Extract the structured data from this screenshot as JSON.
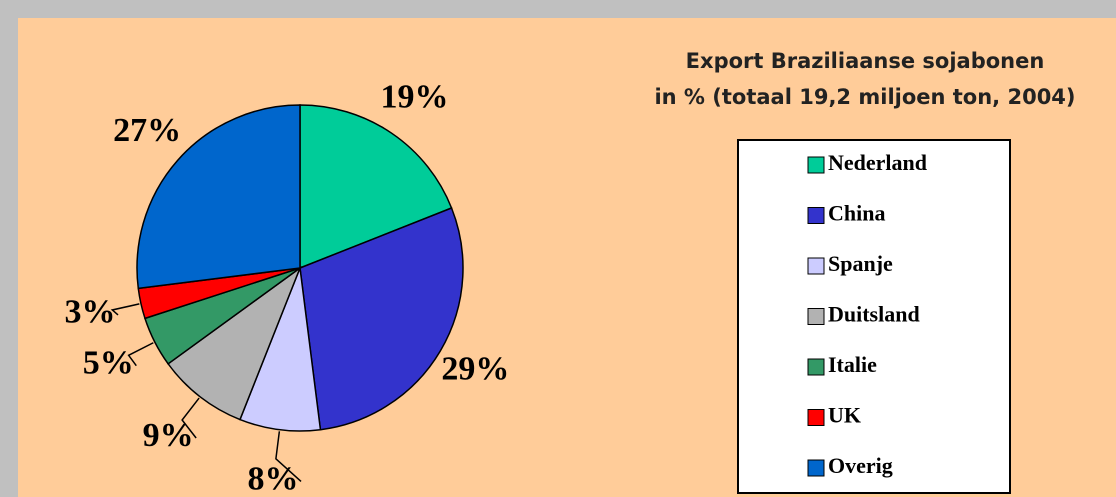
{
  "chart_data": {
    "type": "pie",
    "title": [
      "Export Braziliaanse sojabonen",
      "in % (totaal 19,2 miljoen ton, 2004)"
    ],
    "categories": [
      "Nederland",
      "China",
      "Spanje",
      "Duitsland",
      "Italie",
      "UK",
      "Overig"
    ],
    "values": [
      19,
      29,
      8,
      9,
      5,
      3,
      27
    ],
    "value_labels": [
      "19%",
      "29%",
      "8%",
      "9%",
      "5%",
      "3%",
      "27%"
    ],
    "colors": [
      "#00cc99",
      "#3333cc",
      "#ccccff",
      "#b2b2b2",
      "#339966",
      "#ff0000",
      "#0066cc"
    ],
    "legend": "right"
  }
}
